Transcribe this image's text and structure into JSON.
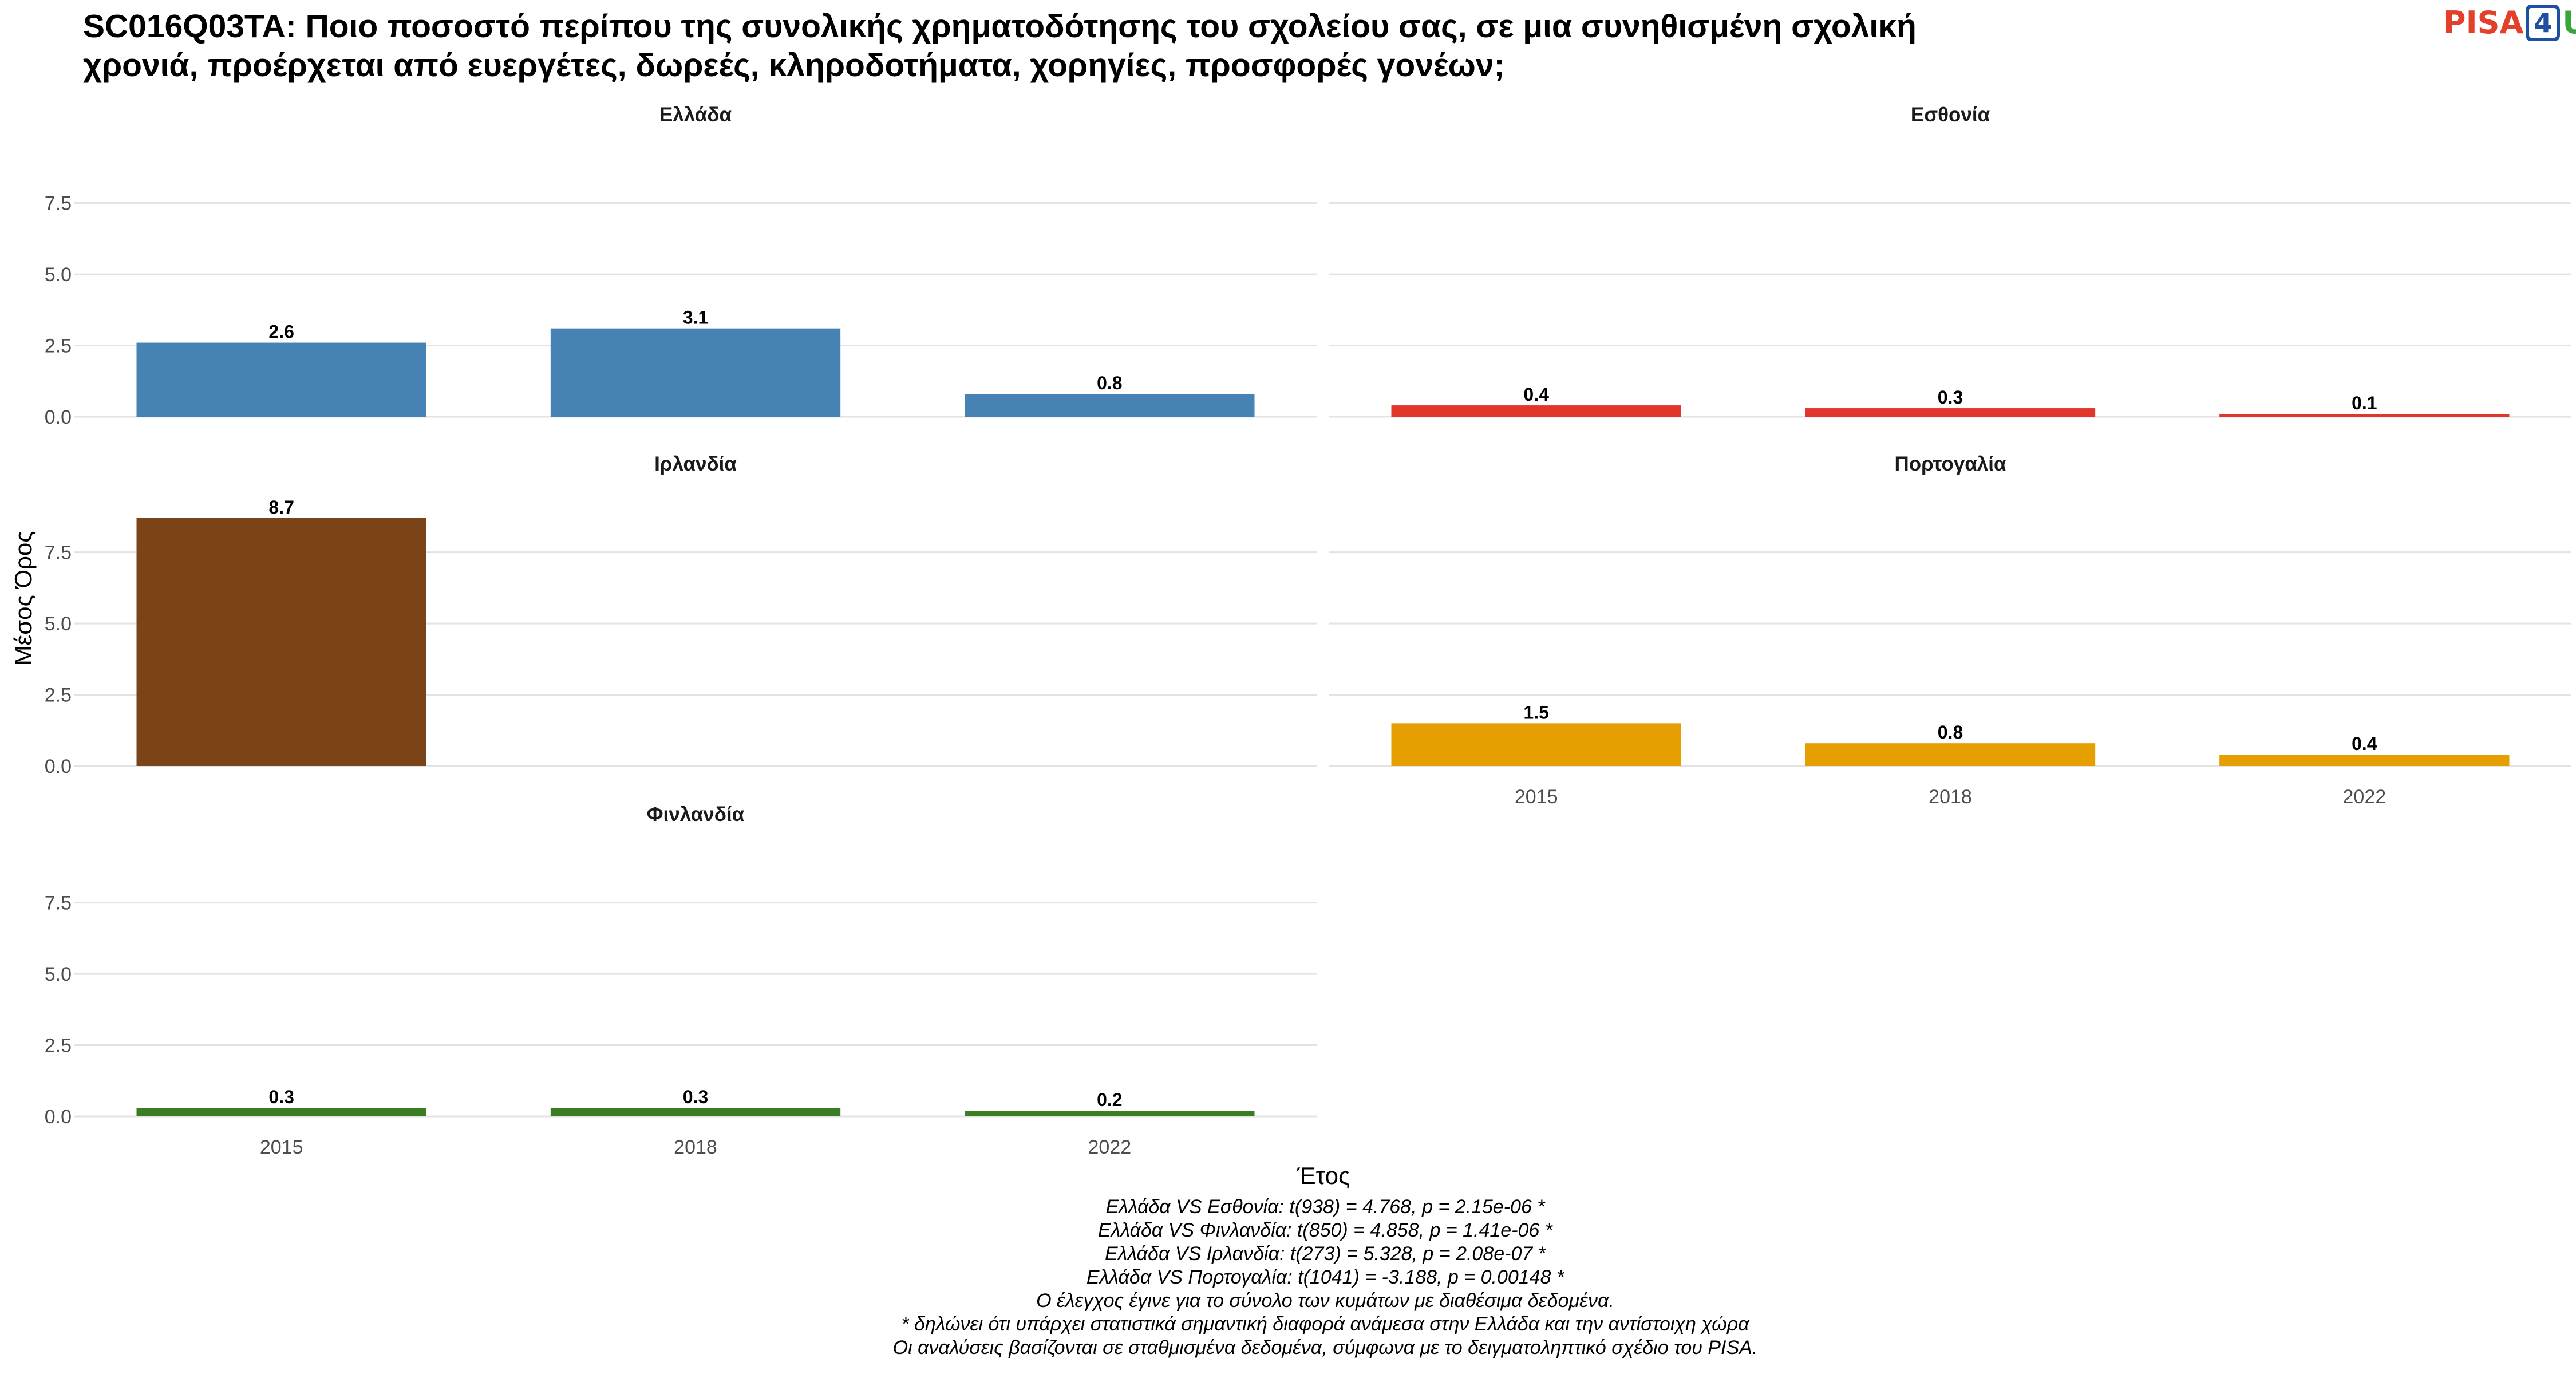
{
  "title_lines": [
    "SC016Q03TA: Ποιο ποσοστό περίπου της συνολικής χρηματοδότησης του σχολείου σας, σε μια συνηθισμένη σχολική",
    "χρονιά, προέρχεται από ευεργέτες, δωρεές, κληροδοτήματα, χορηγίες, προσφορές γονέων;"
  ],
  "logo": {
    "pisa": "PISA",
    "four": "4",
    "u": "U"
  },
  "chart_data": {
    "type": "bar",
    "xlabel": "Έτος",
    "ylabel": "Μέσος Όρος",
    "ylim": [
      0,
      9.3
    ],
    "yticks": [
      0,
      2.5,
      5,
      7.5
    ],
    "ytick_labels": [
      "0.0",
      "2.5",
      "5.0",
      "7.5"
    ],
    "categories": [
      "2015",
      "2018",
      "2022"
    ],
    "grid": true,
    "panels": [
      {
        "name": "Ελλάδα",
        "color": "#4682b4",
        "values": [
          2.6,
          3.1,
          0.8
        ],
        "labels": [
          "2.6",
          "3.1",
          "0.8"
        ]
      },
      {
        "name": "Εσθονία",
        "color": "#e0362c",
        "values": [
          0.4,
          0.3,
          0.1
        ],
        "labels": [
          "0.4",
          "0.3",
          "0.1"
        ]
      },
      {
        "name": "Ιρλανδία",
        "color": "#7b4418",
        "values": [
          8.7,
          null,
          null
        ],
        "labels": [
          "8.7",
          "",
          ""
        ]
      },
      {
        "name": "Πορτογαλία",
        "color": "#e69f00",
        "values": [
          1.5,
          0.8,
          0.4
        ],
        "labels": [
          "1.5",
          "0.8",
          "0.4"
        ]
      },
      {
        "name": "Φινλανδία",
        "color": "#3a7d22",
        "values": [
          0.3,
          0.3,
          0.2
        ],
        "labels": [
          "0.3",
          "0.3",
          "0.2"
        ]
      }
    ]
  },
  "notes": [
    "Ελλάδα VS Εσθονία: t(938) = 4.768, p = 2.15e-06 *",
    "Ελλάδα VS Φινλανδία: t(850) = 4.858, p = 1.41e-06 *",
    "Ελλάδα VS Ιρλανδία: t(273) = 5.328, p = 2.08e-07 *",
    "Ελλάδα VS Πορτογαλία: t(1041) = -3.188, p = 0.00148 *",
    "Ο έλεγχος έγινε για το σύνολο των κυμάτων με διαθέσιμα δεδομένα.",
    "* δηλώνει ότι υπάρχει στατιστικά σημαντική διαφορά ανάμεσα στην Ελλάδα και την αντίστοιχη χώρα",
    "Οι αναλύσεις βασίζονται σε σταθμισμένα δεδομένα, σύμφωνα με το δειγματοληπτικό σχέδιο του PISA."
  ]
}
